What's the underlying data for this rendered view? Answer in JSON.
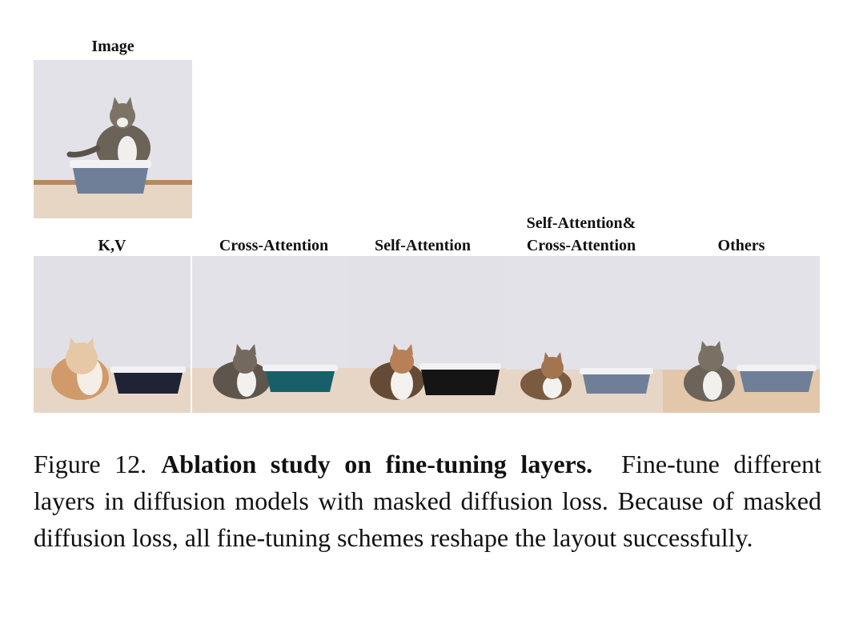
{
  "top": {
    "label": "Image"
  },
  "columns": [
    {
      "label": "K,V"
    },
    {
      "label": "Cross-Attention"
    },
    {
      "label": "Self-Attention"
    },
    {
      "label_line1": "Self-Attention&",
      "label_line2": "Cross-Attention"
    },
    {
      "label": "Others"
    }
  ],
  "caption": {
    "figure_number": "Figure 12.",
    "title": "Ablation study on fine-tuning layers.",
    "body": "Fine-tune different layers in diffusion models with masked diffusion loss. Because of masked diffusion loss, all fine-tuning schemes reshape the layout successfully."
  },
  "colors": {
    "wall": "#e3e3e9",
    "floor": "#e4d3c2",
    "box_gray": "#6f7f97",
    "box_teal": "#17606a",
    "box_black": "#151515",
    "box_navy": "#1f2333"
  }
}
